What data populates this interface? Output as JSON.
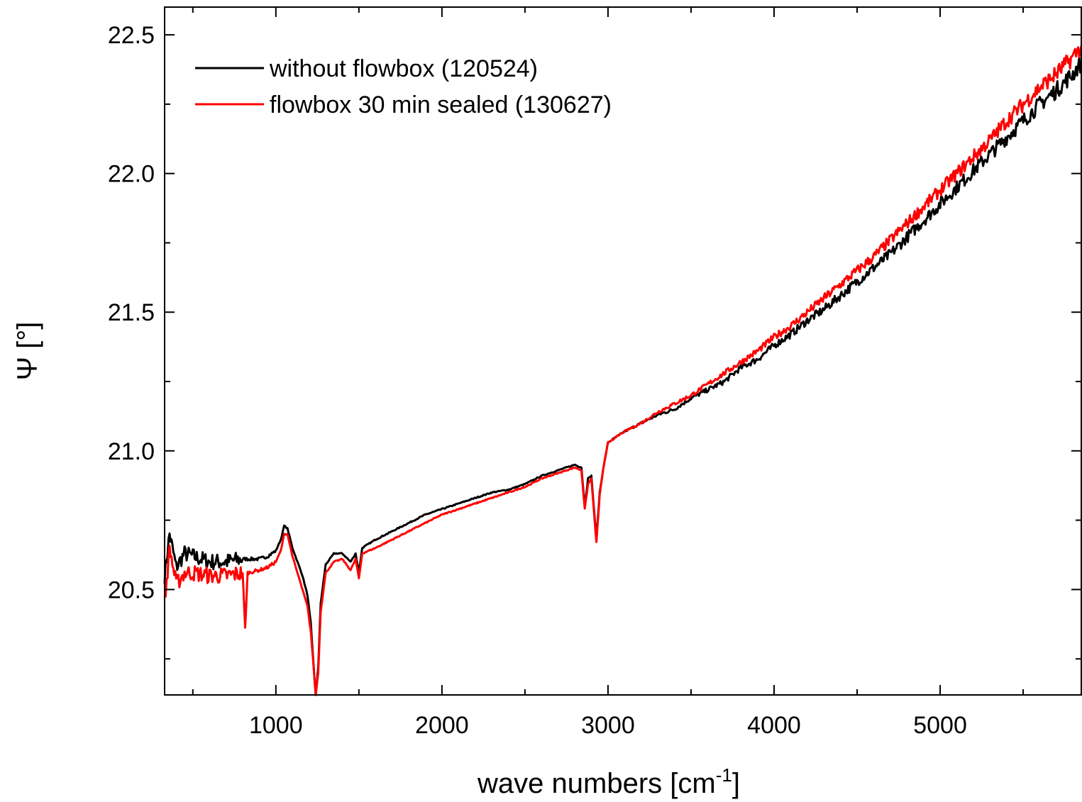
{
  "chart_data": {
    "type": "line",
    "title": "",
    "xlabel": "wave numbers [cm",
    "xlabel_sup": "-1",
    "xlabel_suffix": "]",
    "ylabel": "Ψ [°]",
    "xlim": [
      330,
      5850
    ],
    "ylim": [
      20.12,
      22.6
    ],
    "x_ticks": [
      1000,
      2000,
      3000,
      4000,
      5000
    ],
    "x_tick_labels": [
      "1000",
      "2000",
      "3000",
      "4000",
      "5000"
    ],
    "y_ticks": [
      20.5,
      21.0,
      21.5,
      22.0,
      22.5
    ],
    "y_tick_labels": [
      "20.5",
      "21.0",
      "21.5",
      "22.0",
      "22.5"
    ],
    "grid": false,
    "legend_position": "top-left",
    "series": [
      {
        "name": "without flowbox (120524)",
        "color": "#000000",
        "points": [
          [
            330,
            20.55
          ],
          [
            360,
            20.7
          ],
          [
            400,
            20.58
          ],
          [
            450,
            20.63
          ],
          [
            500,
            20.62
          ],
          [
            600,
            20.6
          ],
          [
            700,
            20.6
          ],
          [
            800,
            20.61
          ],
          [
            900,
            20.61
          ],
          [
            950,
            20.62
          ],
          [
            1000,
            20.64
          ],
          [
            1030,
            20.68
          ],
          [
            1050,
            20.73
          ],
          [
            1070,
            20.72
          ],
          [
            1100,
            20.65
          ],
          [
            1130,
            20.6
          ],
          [
            1160,
            20.55
          ],
          [
            1190,
            20.48
          ],
          [
            1210,
            20.38
          ],
          [
            1230,
            20.2
          ],
          [
            1240,
            20.12
          ],
          [
            1255,
            20.22
          ],
          [
            1270,
            20.45
          ],
          [
            1300,
            20.59
          ],
          [
            1350,
            20.63
          ],
          [
            1400,
            20.63
          ],
          [
            1450,
            20.6
          ],
          [
            1480,
            20.63
          ],
          [
            1500,
            20.56
          ],
          [
            1520,
            20.65
          ],
          [
            1600,
            20.68
          ],
          [
            1700,
            20.71
          ],
          [
            1800,
            20.74
          ],
          [
            1900,
            20.77
          ],
          [
            2000,
            20.79
          ],
          [
            2100,
            20.81
          ],
          [
            2200,
            20.83
          ],
          [
            2300,
            20.85
          ],
          [
            2400,
            20.86
          ],
          [
            2500,
            20.88
          ],
          [
            2600,
            20.91
          ],
          [
            2700,
            20.93
          ],
          [
            2800,
            20.95
          ],
          [
            2840,
            20.94
          ],
          [
            2860,
            20.8
          ],
          [
            2880,
            20.9
          ],
          [
            2900,
            20.91
          ],
          [
            2930,
            20.68
          ],
          [
            2950,
            20.85
          ],
          [
            2970,
            20.93
          ],
          [
            3000,
            21.03
          ],
          [
            3100,
            21.07
          ],
          [
            3200,
            21.1
          ],
          [
            3300,
            21.13
          ],
          [
            3400,
            21.15
          ],
          [
            3500,
            21.19
          ],
          [
            3600,
            21.22
          ],
          [
            3700,
            21.25
          ],
          [
            3800,
            21.3
          ],
          [
            3900,
            21.33
          ],
          [
            4000,
            21.38
          ],
          [
            4100,
            21.42
          ],
          [
            4200,
            21.47
          ],
          [
            4300,
            21.51
          ],
          [
            4400,
            21.56
          ],
          [
            4500,
            21.61
          ],
          [
            4600,
            21.66
          ],
          [
            4700,
            21.71
          ],
          [
            4800,
            21.77
          ],
          [
            4900,
            21.83
          ],
          [
            5000,
            21.89
          ],
          [
            5100,
            21.95
          ],
          [
            5200,
            22.01
          ],
          [
            5300,
            22.07
          ],
          [
            5400,
            22.13
          ],
          [
            5500,
            22.19
          ],
          [
            5600,
            22.25
          ],
          [
            5700,
            22.3
          ],
          [
            5800,
            22.36
          ],
          [
            5850,
            22.4
          ]
        ]
      },
      {
        "name": "flowbox 30 min sealed (130627)",
        "color": "#ff0000",
        "points": [
          [
            330,
            20.45
          ],
          [
            360,
            20.65
          ],
          [
            400,
            20.52
          ],
          [
            450,
            20.56
          ],
          [
            500,
            20.56
          ],
          [
            600,
            20.55
          ],
          [
            700,
            20.55
          ],
          [
            800,
            20.56
          ],
          [
            815,
            20.36
          ],
          [
            830,
            20.56
          ],
          [
            900,
            20.57
          ],
          [
            950,
            20.58
          ],
          [
            1000,
            20.6
          ],
          [
            1030,
            20.64
          ],
          [
            1050,
            20.7
          ],
          [
            1070,
            20.7
          ],
          [
            1100,
            20.62
          ],
          [
            1130,
            20.56
          ],
          [
            1160,
            20.5
          ],
          [
            1190,
            20.44
          ],
          [
            1210,
            20.35
          ],
          [
            1230,
            20.2
          ],
          [
            1240,
            20.12
          ],
          [
            1255,
            20.2
          ],
          [
            1270,
            20.42
          ],
          [
            1300,
            20.56
          ],
          [
            1350,
            20.6
          ],
          [
            1400,
            20.61
          ],
          [
            1450,
            20.57
          ],
          [
            1480,
            20.61
          ],
          [
            1500,
            20.54
          ],
          [
            1520,
            20.63
          ],
          [
            1600,
            20.65
          ],
          [
            1700,
            20.68
          ],
          [
            1800,
            20.71
          ],
          [
            1900,
            20.74
          ],
          [
            2000,
            20.77
          ],
          [
            2100,
            20.79
          ],
          [
            2200,
            20.81
          ],
          [
            2300,
            20.83
          ],
          [
            2400,
            20.85
          ],
          [
            2500,
            20.87
          ],
          [
            2600,
            20.9
          ],
          [
            2700,
            20.92
          ],
          [
            2800,
            20.94
          ],
          [
            2840,
            20.93
          ],
          [
            2860,
            20.79
          ],
          [
            2880,
            20.88
          ],
          [
            2900,
            20.9
          ],
          [
            2930,
            20.67
          ],
          [
            2950,
            20.84
          ],
          [
            2970,
            20.93
          ],
          [
            3000,
            21.03
          ],
          [
            3100,
            21.07
          ],
          [
            3200,
            21.1
          ],
          [
            3300,
            21.14
          ],
          [
            3400,
            21.17
          ],
          [
            3500,
            21.2
          ],
          [
            3600,
            21.24
          ],
          [
            3700,
            21.28
          ],
          [
            3800,
            21.32
          ],
          [
            3900,
            21.36
          ],
          [
            4000,
            21.41
          ],
          [
            4100,
            21.45
          ],
          [
            4200,
            21.5
          ],
          [
            4300,
            21.55
          ],
          [
            4400,
            21.6
          ],
          [
            4500,
            21.65
          ],
          [
            4600,
            21.7
          ],
          [
            4700,
            21.76
          ],
          [
            4800,
            21.82
          ],
          [
            4900,
            21.88
          ],
          [
            5000,
            21.94
          ],
          [
            5100,
            22.0
          ],
          [
            5200,
            22.06
          ],
          [
            5300,
            22.12
          ],
          [
            5400,
            22.19
          ],
          [
            5500,
            22.25
          ],
          [
            5600,
            22.31
          ],
          [
            5700,
            22.36
          ],
          [
            5800,
            22.42
          ],
          [
            5850,
            22.46
          ]
        ]
      }
    ]
  }
}
